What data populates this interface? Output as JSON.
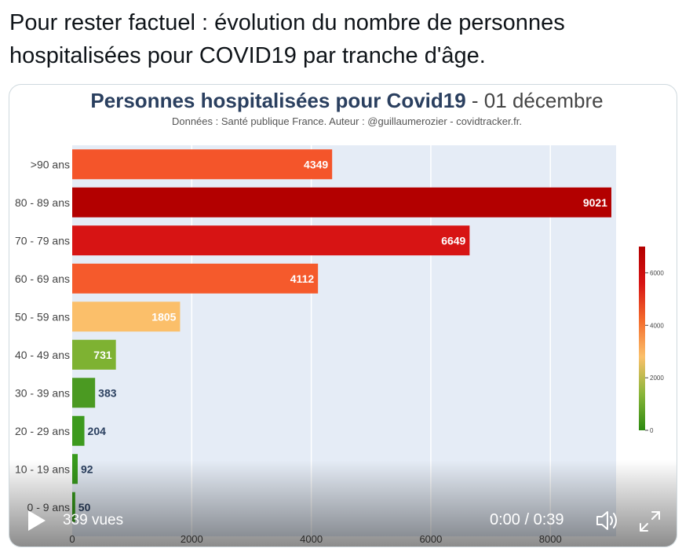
{
  "tweet": {
    "text": "Pour rester factuel : évolution du nombre de personnes hospitalisées pour COVID19 par tranche d'âge."
  },
  "chart_data": {
    "type": "bar",
    "orientation": "horizontal",
    "title": "Personnes hospitalisées pour Covid19",
    "title_date": "- 01 décembre",
    "subtitle": "Données : Santé publique France. Auteur : @guillaumerozier - covidtracker.fr.",
    "categories": [
      ">90 ans",
      "80 - 89 ans",
      "70 - 79 ans",
      "60 - 69 ans",
      "50 - 59 ans",
      "40 - 49 ans",
      "30 - 39 ans",
      "20 - 29 ans",
      "10 - 19 ans",
      "0 - 9 ans"
    ],
    "values": [
      4349,
      9021,
      6649,
      4112,
      1805,
      731,
      383,
      204,
      92,
      50
    ],
    "bar_colors": [
      "#f4552a",
      "#b30000",
      "#d71414",
      "#f55a2c",
      "#fbbf6a",
      "#7eb232",
      "#4b9a22",
      "#3d9a1e",
      "#389a1c",
      "#359a1a"
    ],
    "xlim": [
      0,
      9100
    ],
    "xticks": [
      0,
      2000,
      4000,
      6000,
      8000
    ],
    "xtick_labels": [
      "0",
      "2000",
      "4000",
      "6000",
      "8000"
    ],
    "colorbar": {
      "ticks": [
        0,
        2000,
        4000,
        6000
      ],
      "tick_labels": [
        "0",
        "2000",
        "4000",
        "6000"
      ],
      "range": [
        0,
        7000
      ],
      "colors": [
        "#2c8a10",
        "#8bb63a",
        "#fbc06a",
        "#f46b2c",
        "#d71414",
        "#b30000"
      ]
    },
    "legend": "none"
  },
  "player": {
    "views": "339 vues",
    "time": "0:00 / 0:39"
  },
  "icons": {
    "play": "play-icon",
    "volume": "volume-icon",
    "fullscreen": "fullscreen-icon"
  }
}
